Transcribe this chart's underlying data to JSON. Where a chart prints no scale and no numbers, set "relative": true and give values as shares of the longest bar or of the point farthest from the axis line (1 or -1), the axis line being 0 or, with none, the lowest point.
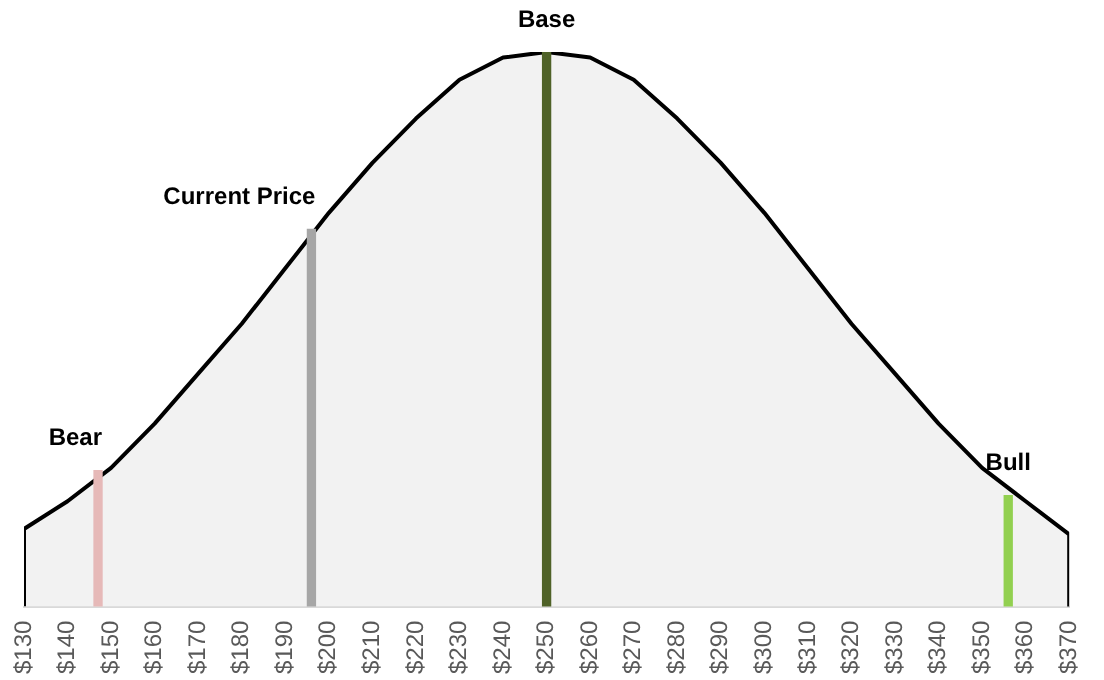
{
  "chart_data": {
    "type": "area",
    "relative": true,
    "tick_labels": "x",
    "xlim": [
      130,
      370
    ],
    "xticks": [
      {
        "value": 130,
        "label": "$130"
      },
      {
        "value": 140,
        "label": "$140"
      },
      {
        "value": 150,
        "label": "$150"
      },
      {
        "value": 160,
        "label": "$160"
      },
      {
        "value": 170,
        "label": "$170"
      },
      {
        "value": 180,
        "label": "$180"
      },
      {
        "value": 190,
        "label": "$190"
      },
      {
        "value": 200,
        "label": "$200"
      },
      {
        "value": 210,
        "label": "$210"
      },
      {
        "value": 220,
        "label": "$220"
      },
      {
        "value": 230,
        "label": "$230"
      },
      {
        "value": 240,
        "label": "$240"
      },
      {
        "value": 250,
        "label": "$250"
      },
      {
        "value": 260,
        "label": "$260"
      },
      {
        "value": 270,
        "label": "$270"
      },
      {
        "value": 280,
        "label": "$280"
      },
      {
        "value": 290,
        "label": "$290"
      },
      {
        "value": 300,
        "label": "$300"
      },
      {
        "value": 310,
        "label": "$310"
      },
      {
        "value": 320,
        "label": "$320"
      },
      {
        "value": 330,
        "label": "$330"
      },
      {
        "value": 340,
        "label": "$340"
      },
      {
        "value": 350,
        "label": "$350"
      },
      {
        "value": 360,
        "label": "$360"
      },
      {
        "value": 370,
        "label": "$370"
      }
    ],
    "series": [
      {
        "color": "#f2f2f2",
        "x": [
          130,
          130,
          140,
          150,
          160,
          170,
          180,
          190,
          200,
          210,
          220,
          230,
          240,
          250,
          260,
          270,
          280,
          290,
          300,
          310,
          320,
          330,
          340,
          350,
          360,
          370,
          370
        ],
        "values": [
          0,
          0.14,
          0.19,
          0.25,
          0.33,
          0.42,
          0.51,
          0.61,
          0.71,
          0.8,
          0.88,
          0.95,
          0.99,
          1,
          0.99,
          0.95,
          0.88,
          0.8,
          0.71,
          0.61,
          0.51,
          0.42,
          0.33,
          0.25,
          0.19,
          0.13,
          0
        ]
      },
      {
        "type": "bar",
        "x": [
          147,
          196,
          250,
          356
        ],
        "values": [
          0.245,
          0.68,
          1,
          0.2
        ],
        "colors": [
          "#e6b9b8",
          "#a6a6a6",
          "#4f6228",
          "#92d050"
        ]
      }
    ],
    "annotations": [
      {
        "text": "Bear",
        "x": 147,
        "y": 0.245
      },
      {
        "text": "Current Price",
        "x": 196,
        "y": 0.68
      },
      {
        "text": "Base",
        "x": 250,
        "y": 1
      },
      {
        "text": "Bull",
        "x": 356,
        "y": 0.2
      }
    ]
  }
}
